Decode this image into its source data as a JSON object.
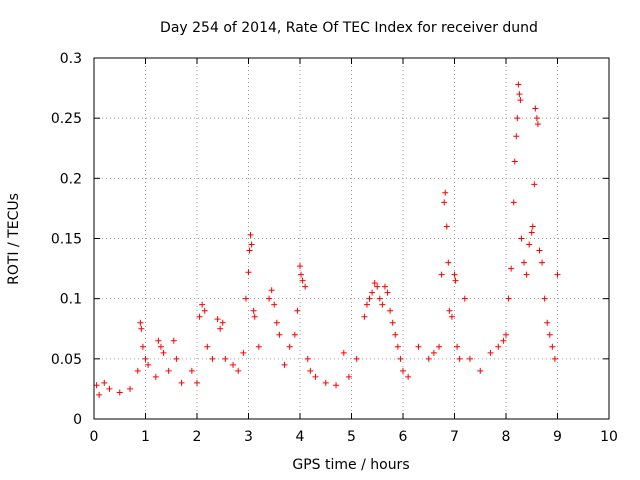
{
  "chart_data": {
    "type": "scatter",
    "title": "Day 254 of 2014, Rate Of TEC Index for receiver dund",
    "xlabel": "GPS time / hours",
    "ylabel": "ROTI / TECUs",
    "xlim": [
      0,
      10
    ],
    "ylim": [
      0,
      0.3
    ],
    "xticks": [
      "0",
      "1",
      "2",
      "3",
      "4",
      "5",
      "6",
      "7",
      "8",
      "9",
      "10"
    ],
    "yticks": [
      "0",
      "0.05",
      "0.1",
      "0.15",
      "0.2",
      "0.25",
      "0.3"
    ],
    "grid": true,
    "marker": "+",
    "color": "#ff0000",
    "series": [
      {
        "name": "ROTI",
        "points": [
          [
            0.05,
            0.028
          ],
          [
            0.1,
            0.02
          ],
          [
            0.2,
            0.03
          ],
          [
            0.3,
            0.025
          ],
          [
            0.5,
            0.022
          ],
          [
            0.7,
            0.025
          ],
          [
            0.85,
            0.04
          ],
          [
            0.9,
            0.08
          ],
          [
            0.92,
            0.075
          ],
          [
            0.95,
            0.06
          ],
          [
            1.0,
            0.05
          ],
          [
            1.05,
            0.045
          ],
          [
            1.2,
            0.035
          ],
          [
            1.25,
            0.065
          ],
          [
            1.3,
            0.06
          ],
          [
            1.35,
            0.055
          ],
          [
            1.45,
            0.04
          ],
          [
            1.55,
            0.065
          ],
          [
            1.6,
            0.05
          ],
          [
            1.7,
            0.03
          ],
          [
            1.9,
            0.04
          ],
          [
            2.0,
            0.03
          ],
          [
            2.05,
            0.085
          ],
          [
            2.1,
            0.095
          ],
          [
            2.15,
            0.09
          ],
          [
            2.2,
            0.06
          ],
          [
            2.3,
            0.05
          ],
          [
            2.4,
            0.083
          ],
          [
            2.45,
            0.075
          ],
          [
            2.5,
            0.08
          ],
          [
            2.55,
            0.05
          ],
          [
            2.7,
            0.045
          ],
          [
            2.8,
            0.04
          ],
          [
            2.9,
            0.055
          ],
          [
            2.95,
            0.1
          ],
          [
            3.0,
            0.122
          ],
          [
            3.02,
            0.14
          ],
          [
            3.04,
            0.153
          ],
          [
            3.06,
            0.145
          ],
          [
            3.1,
            0.09
          ],
          [
            3.12,
            0.085
          ],
          [
            3.2,
            0.06
          ],
          [
            3.4,
            0.1
          ],
          [
            3.45,
            0.107
          ],
          [
            3.5,
            0.095
          ],
          [
            3.55,
            0.08
          ],
          [
            3.6,
            0.07
          ],
          [
            3.7,
            0.045
          ],
          [
            3.8,
            0.06
          ],
          [
            3.9,
            0.07
          ],
          [
            3.95,
            0.09
          ],
          [
            4.0,
            0.127
          ],
          [
            4.02,
            0.12
          ],
          [
            4.05,
            0.115
          ],
          [
            4.1,
            0.11
          ],
          [
            4.15,
            0.05
          ],
          [
            4.2,
            0.04
          ],
          [
            4.3,
            0.035
          ],
          [
            4.5,
            0.03
          ],
          [
            4.7,
            0.028
          ],
          [
            4.85,
            0.055
          ],
          [
            4.95,
            0.035
          ],
          [
            5.1,
            0.05
          ],
          [
            5.25,
            0.085
          ],
          [
            5.3,
            0.095
          ],
          [
            5.35,
            0.1
          ],
          [
            5.4,
            0.105
          ],
          [
            5.45,
            0.113
          ],
          [
            5.5,
            0.11
          ],
          [
            5.55,
            0.1
          ],
          [
            5.6,
            0.095
          ],
          [
            5.65,
            0.11
          ],
          [
            5.7,
            0.105
          ],
          [
            5.75,
            0.09
          ],
          [
            5.8,
            0.08
          ],
          [
            5.85,
            0.07
          ],
          [
            5.9,
            0.06
          ],
          [
            5.95,
            0.05
          ],
          [
            6.0,
            0.04
          ],
          [
            6.1,
            0.035
          ],
          [
            6.3,
            0.06
          ],
          [
            6.5,
            0.05
          ],
          [
            6.6,
            0.055
          ],
          [
            6.7,
            0.06
          ],
          [
            6.75,
            0.12
          ],
          [
            6.8,
            0.18
          ],
          [
            6.82,
            0.188
          ],
          [
            6.85,
            0.16
          ],
          [
            6.88,
            0.13
          ],
          [
            6.9,
            0.09
          ],
          [
            6.95,
            0.085
          ],
          [
            7.0,
            0.12
          ],
          [
            7.02,
            0.115
          ],
          [
            7.05,
            0.06
          ],
          [
            7.1,
            0.05
          ],
          [
            7.2,
            0.1
          ],
          [
            7.3,
            0.05
          ],
          [
            7.5,
            0.04
          ],
          [
            7.7,
            0.055
          ],
          [
            7.85,
            0.06
          ],
          [
            7.95,
            0.065
          ],
          [
            8.0,
            0.07
          ],
          [
            8.05,
            0.1
          ],
          [
            8.1,
            0.125
          ],
          [
            8.15,
            0.18
          ],
          [
            8.17,
            0.214
          ],
          [
            8.2,
            0.235
          ],
          [
            8.22,
            0.25
          ],
          [
            8.24,
            0.278
          ],
          [
            8.26,
            0.27
          ],
          [
            8.28,
            0.265
          ],
          [
            8.3,
            0.15
          ],
          [
            8.35,
            0.13
          ],
          [
            8.4,
            0.12
          ],
          [
            8.45,
            0.145
          ],
          [
            8.5,
            0.155
          ],
          [
            8.52,
            0.16
          ],
          [
            8.55,
            0.195
          ],
          [
            8.57,
            0.258
          ],
          [
            8.6,
            0.25
          ],
          [
            8.62,
            0.245
          ],
          [
            8.65,
            0.14
          ],
          [
            8.7,
            0.13
          ],
          [
            8.75,
            0.1
          ],
          [
            8.8,
            0.08
          ],
          [
            8.85,
            0.07
          ],
          [
            8.9,
            0.06
          ],
          [
            8.95,
            0.05
          ],
          [
            9.0,
            0.12
          ]
        ]
      }
    ]
  }
}
